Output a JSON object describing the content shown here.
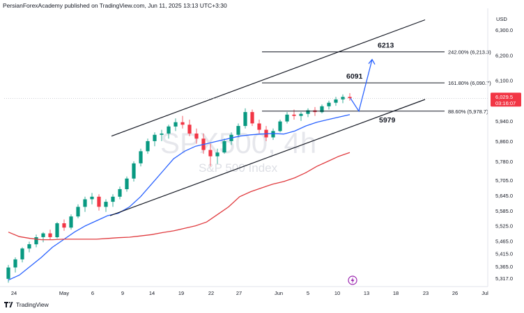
{
  "header": {
    "publisher_line": "PersianForexAcademy published on TradingView.com, Jun 11, 2025 13:13 UTC+3:30"
  },
  "footer": {
    "brand": "TradingView"
  },
  "currency": "USD",
  "watermark": {
    "symbol": "SPX500, 4h",
    "name": "S&P 500 Index"
  },
  "last_price": {
    "value": "6,029.5",
    "countdown": "03:16:07",
    "color": "#f23645"
  },
  "colors": {
    "up": "#089981",
    "down": "#f23645",
    "ma_fast": "#2962ff",
    "ma_slow": "#e03a3e",
    "arrow": "#2962ff",
    "channel": "#131722"
  },
  "icons": {
    "bottom_marker": "lightning-bolt-icon"
  },
  "chart_data": {
    "type": "candlestick",
    "ylim": [
      5290,
      6380
    ],
    "y_ticks": [
      "6,300.0",
      "6,200.0",
      "6,100.0",
      "5,940.0",
      "5,860.0",
      "5,780.0",
      "5,705.0",
      "5,645.0",
      "5,585.0",
      "5,525.0",
      "5,465.0",
      "5,415.0",
      "5,365.0",
      "5,317.0"
    ],
    "x_ticks": [
      "24",
      "May",
      "6",
      "9",
      "14",
      "19",
      "22",
      "27",
      "Jun",
      "5",
      "10",
      "13",
      "18",
      "23",
      "26",
      "Jul"
    ],
    "fib_levels": [
      {
        "label": "242.00% (6,213.3)",
        "value": 6213.3
      },
      {
        "label": "161.80% (6,090.7)",
        "value": 6090.7
      },
      {
        "label": "88.60% (5,978.7)",
        "value": 5978.7
      }
    ],
    "annotations": [
      "6213",
      "6091",
      "5979"
    ],
    "channel": {
      "upper": [
        [
          5880,
          6340
        ]
      ],
      "lower": [
        [
          5565,
          6025
        ]
      ]
    },
    "projection": [
      6029.5,
      5978.7,
      6183
    ],
    "moving_averages": [
      {
        "color": "#2962ff",
        "values": [
          5310,
          5330,
          5365,
          5400,
          5440,
          5470,
          5500,
          5525,
          5545,
          5565,
          5575,
          5600,
          5640,
          5690,
          5740,
          5790,
          5820,
          5840,
          5850,
          5860,
          5870,
          5880,
          5885,
          5888,
          5890,
          5888,
          5900,
          5920,
          5935,
          5945,
          5955,
          5965
        ]
      },
      {
        "color": "#e03a3e",
        "values": [
          5500,
          5482,
          5475,
          5470,
          5470,
          5472,
          5472,
          5472,
          5472,
          5475,
          5478,
          5480,
          5485,
          5490,
          5498,
          5505,
          5515,
          5525,
          5540,
          5570,
          5600,
          5640,
          5660,
          5675,
          5690,
          5700,
          5715,
          5735,
          5760,
          5780,
          5800,
          5815
        ]
      }
    ],
    "ohlc": [
      [
        5315,
        5370,
        5300,
        5360
      ],
      [
        5360,
        5400,
        5340,
        5392
      ],
      [
        5392,
        5440,
        5380,
        5435
      ],
      [
        5435,
        5462,
        5420,
        5452
      ],
      [
        5452,
        5490,
        5440,
        5480
      ],
      [
        5480,
        5500,
        5460,
        5495
      ],
      [
        5495,
        5510,
        5470,
        5480
      ],
      [
        5480,
        5540,
        5475,
        5535
      ],
      [
        5535,
        5550,
        5505,
        5518
      ],
      [
        5518,
        5570,
        5510,
        5562
      ],
      [
        5562,
        5610,
        5555,
        5600
      ],
      [
        5600,
        5640,
        5580,
        5630
      ],
      [
        5630,
        5655,
        5610,
        5640
      ],
      [
        5640,
        5650,
        5585,
        5600
      ],
      [
        5600,
        5630,
        5580,
        5620
      ],
      [
        5620,
        5650,
        5600,
        5640
      ],
      [
        5640,
        5680,
        5630,
        5670
      ],
      [
        5670,
        5720,
        5660,
        5712
      ],
      [
        5712,
        5780,
        5700,
        5772
      ],
      [
        5772,
        5830,
        5760,
        5820
      ],
      [
        5820,
        5870,
        5810,
        5860
      ],
      [
        5860,
        5895,
        5840,
        5885
      ],
      [
        5885,
        5905,
        5860,
        5890
      ],
      [
        5890,
        5925,
        5870,
        5918
      ],
      [
        5918,
        5950,
        5900,
        5935
      ],
      [
        5935,
        5960,
        5910,
        5925
      ],
      [
        5925,
        5945,
        5880,
        5890
      ],
      [
        5890,
        5910,
        5850,
        5870
      ],
      [
        5870,
        5890,
        5810,
        5825
      ],
      [
        5825,
        5850,
        5760,
        5800
      ],
      [
        5800,
        5830,
        5770,
        5815
      ],
      [
        5815,
        5870,
        5810,
        5860
      ],
      [
        5860,
        5895,
        5845,
        5885
      ],
      [
        5885,
        5930,
        5875,
        5920
      ],
      [
        5920,
        5990,
        5910,
        5975
      ],
      [
        5975,
        5985,
        5920,
        5930
      ],
      [
        5930,
        5945,
        5890,
        5905
      ],
      [
        5905,
        5920,
        5860,
        5875
      ],
      [
        5875,
        5910,
        5865,
        5900
      ],
      [
        5900,
        5945,
        5895,
        5938
      ],
      [
        5938,
        5975,
        5930,
        5965
      ],
      [
        5965,
        5985,
        5945,
        5960
      ],
      [
        5960,
        5975,
        5940,
        5968
      ],
      [
        5968,
        5990,
        5955,
        5982
      ],
      [
        5982,
        5995,
        5960,
        5975
      ],
      [
        5975,
        6005,
        5970,
        5998
      ],
      [
        5998,
        6020,
        5985,
        6012
      ],
      [
        6012,
        6035,
        6000,
        6025
      ],
      [
        6025,
        6045,
        6010,
        6035
      ],
      [
        6035,
        6050,
        6020,
        6030
      ]
    ]
  }
}
